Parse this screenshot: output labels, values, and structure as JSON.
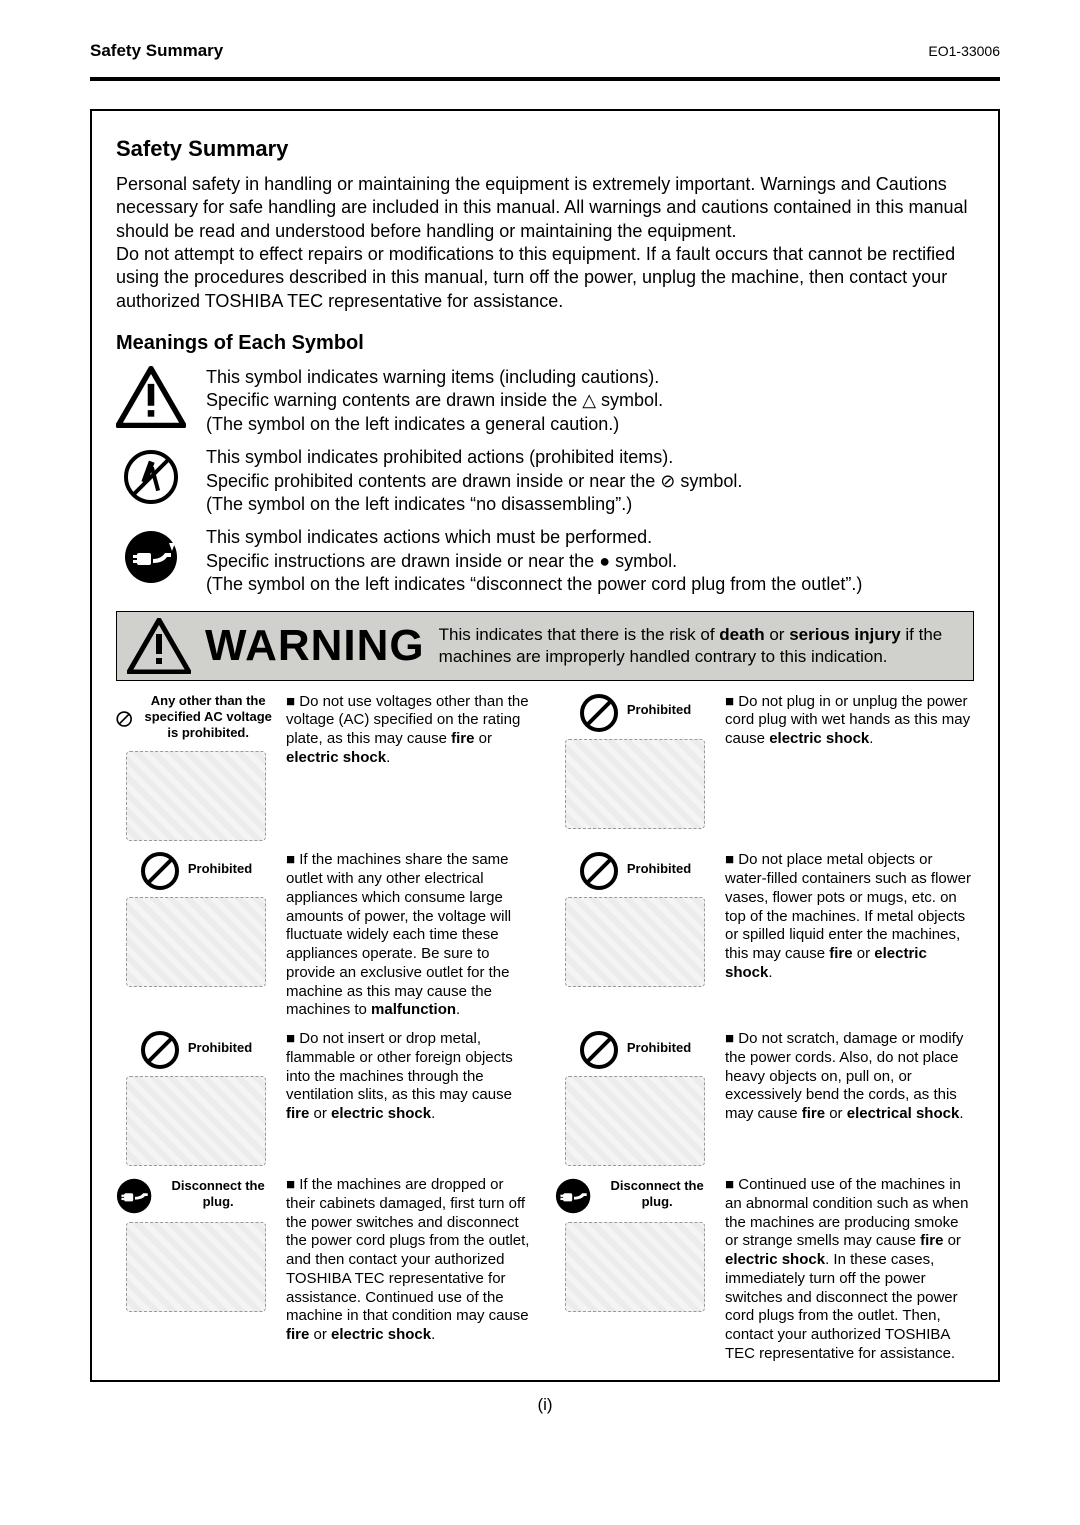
{
  "header": {
    "left": "Safety Summary",
    "right": "EO1-33006"
  },
  "title": "Safety Summary",
  "intro": "Personal safety in handling or maintaining the equipment is extremely important.  Warnings and Cautions necessary for safe handling are included in this manual.  All warnings and cautions contained in this manual should be read and understood before handling or maintaining the equipment.\nDo not attempt to effect repairs or modifications to this equipment.  If a fault occurs that cannot be rectified using the procedures described in this manual, turn off the power, unplug the machine, then contact your authorized TOSHIBA TEC representative for assistance.",
  "symbols_heading": "Meanings of Each Symbol",
  "symbols": [
    {
      "icon": "warning-triangle",
      "lines": [
        "This symbol indicates warning items (including cautions).",
        "Specific warning contents are drawn inside the △ symbol.",
        "(The symbol on the left indicates a general caution.)"
      ]
    },
    {
      "icon": "no-disassemble",
      "lines": [
        "This symbol indicates prohibited actions (prohibited items).",
        "Specific prohibited contents are drawn inside or near the ⊘ symbol.",
        "(The symbol on the left indicates “no disassembling”.)"
      ]
    },
    {
      "icon": "unplug",
      "lines": [
        "This symbol indicates actions which must be performed.",
        "Specific instructions are drawn inside or near the ● symbol.",
        "(The symbol on the left indicates “disconnect the power cord plug from the outlet”.)"
      ]
    }
  ],
  "banner": {
    "title": "WARNING",
    "desc_a": "This indicates that there is the risk of ",
    "desc_b": "death",
    "desc_c": " or ",
    "desc_d": "serious injury",
    "desc_e": " if the machines are improperly handled contrary to this indication."
  },
  "warnings": [
    {
      "icon": "prohibit",
      "label": "Any other than the specified AC voltage is prohibited.",
      "html": "Do not use voltages other than the voltage (AC) specified on the rating plate, as this may cause <b>fire</b> or <b>electric shock</b>."
    },
    {
      "icon": "prohibit",
      "label": "Prohibited",
      "html": "Do not plug in or unplug the power cord plug with wet hands as this may cause <b>electric shock</b>."
    },
    {
      "icon": "prohibit",
      "label": "Prohibited",
      "html": "If the machines share the same outlet with any other electrical appliances which consume large amounts of power, the voltage will fluctuate widely each time these appliances operate.  Be sure to provide an exclusive outlet for the machine as this may cause the machines to <b>malfunction</b>."
    },
    {
      "icon": "prohibit",
      "label": "Prohibited",
      "html": "Do not place metal objects or water-filled containers such as flower vases, flower pots or mugs, etc. on top of the machines.  If metal objects or spilled liquid enter the machines, this may cause <b>fire</b> or <b>electric shock</b>."
    },
    {
      "icon": "prohibit",
      "label": "Prohibited",
      "html": "Do not insert or drop metal, flammable or other foreign objects into the machines through the ventilation slits, as this may cause <b>fire</b> or <b>electric shock</b>."
    },
    {
      "icon": "prohibit",
      "label": "Prohibited",
      "html": "Do not scratch, damage or modify the power cords.  Also, do not place heavy objects on, pull on, or excessively bend the cords, as this may cause <b>fire</b> or <b>electrical shock</b>."
    },
    {
      "icon": "mustdo",
      "label": "Disconnect the plug.",
      "html": "If the machines are dropped or their cabinets damaged, first turn off the power switches and disconnect the power cord plugs from the outlet, and then contact your authorized TOSHIBA TEC representative for assistance.  Continued use of the machine in that condition may cause <b>fire</b> or <b>electric shock</b>."
    },
    {
      "icon": "mustdo",
      "label": "Disconnect the plug.",
      "html": "Continued use of the machines in an abnormal condition such as when the machines are producing smoke or strange smells may cause <b>fire</b> or <b>electric shock</b>.  In these cases, immediately turn off the power switches and disconnect the power cord plugs from the outlet.  Then, contact your authorized TOSHIBA TEC representative for assistance."
    }
  ],
  "footer": "(i)",
  "colors": {
    "banner_bg": "#d0d0cc",
    "text": "#000000",
    "bg": "#ffffff"
  }
}
